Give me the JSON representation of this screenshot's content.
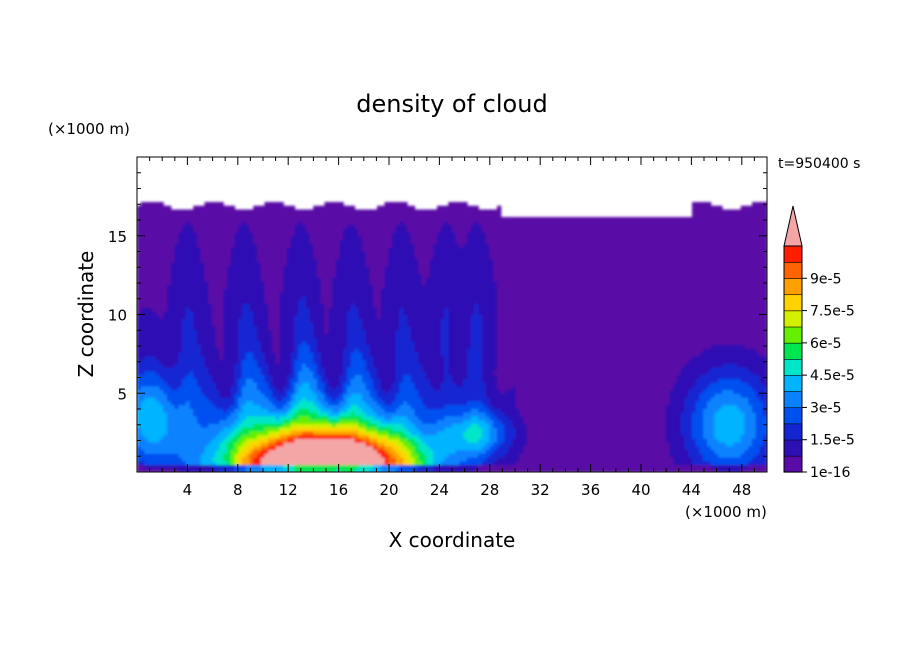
{
  "chart_data": {
    "type": "heatmap",
    "title": "density of cloud",
    "xlabel": "X coordinate",
    "ylabel": "Z coordinate",
    "x_unit": "(×1000 m)",
    "y_unit": "(×1000 m)",
    "time_label": "t=950400 s",
    "xlim": [
      0,
      50
    ],
    "ylim": [
      0,
      20
    ],
    "x_ticks": [
      4,
      8,
      12,
      16,
      20,
      24,
      28,
      32,
      36,
      40,
      44,
      48
    ],
    "y_ticks": [
      5,
      10,
      15
    ],
    "colorbar": {
      "levels": [
        1e-16,
        7.5e-06,
        1.5e-05,
        2.25e-05,
        3e-05,
        3.75e-05,
        4.5e-05,
        5.25e-05,
        6e-05,
        6.75e-05,
        7.5e-05,
        8.25e-05,
        9e-05,
        9.75e-05,
        0.000105
      ],
      "tick_labels": [
        "1e-16",
        "1.5e-5",
        "3e-5",
        "4.5e-5",
        "6e-5",
        "7.5e-5",
        "9e-5"
      ],
      "tick_values": [
        1e-16,
        1.5e-05,
        3e-05,
        4.5e-05,
        6e-05,
        7.5e-05,
        9e-05
      ],
      "colors": [
        "#5a0aa6",
        "#2d0fb4",
        "#1426d2",
        "#0050f0",
        "#0a82ff",
        "#00b4ff",
        "#00e6c8",
        "#00e650",
        "#64f000",
        "#d2f000",
        "#ffd200",
        "#ffa000",
        "#ff6400",
        "#ff1e00"
      ],
      "over_color": "#f4a6a6"
    }
  }
}
